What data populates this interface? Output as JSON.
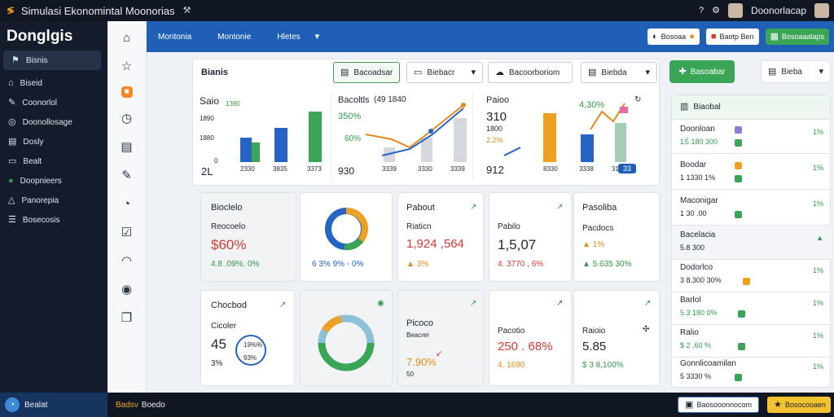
{
  "window": {
    "title": "Simulasi Ekonomintal Moonorias",
    "wrench_icon": "wrench-icon"
  },
  "header": {
    "user_name": "Doonorlacap"
  },
  "sidebar": {
    "brand": "Donglgis",
    "items": [
      {
        "label": "Bisnis",
        "icon": "flag-icon",
        "active": true
      },
      {
        "label": "Biseid",
        "icon": "home-icon"
      },
      {
        "label": "Coonorlol",
        "icon": "pen-icon"
      },
      {
        "label": "Doonollosage",
        "icon": "globe-icon"
      },
      {
        "label": "Dosly",
        "icon": "book-icon"
      },
      {
        "label": "Bealt",
        "icon": "file-icon"
      },
      {
        "label": "Doopnieers",
        "icon": "circle-icon"
      },
      {
        "label": "Panorepia",
        "icon": "triangle-icon"
      },
      {
        "label": "Bosecosis",
        "icon": "list-icon"
      }
    ],
    "footer_label": "Bealat"
  },
  "topnav": {
    "tabs": [
      "Montonia",
      "Montonie",
      "Hletes"
    ],
    "pill1": "Bosoaa",
    "pill2": "Baotp Ben",
    "pill3": "Bosoaaalaps"
  },
  "panel": {
    "title": "Bianis",
    "filter1": "Bacoadsar",
    "filter2": "Biebacr",
    "filter3": "Bacoorboriom",
    "filter4": "Biebda",
    "action_button": "Basoabar",
    "action_select": "Bieba"
  },
  "charts": [
    {
      "title": "Saio",
      "subtitle": "1390",
      "yticks": [
        "1890",
        "1880",
        "0"
      ],
      "foot": "2L",
      "xlabels": [
        "2330",
        "3835",
        "3373"
      ],
      "values": [
        30,
        36,
        70
      ],
      "colors": [
        "#2364c4",
        "#2364c4",
        "#3aa655"
      ]
    },
    {
      "title": "Bacoltls",
      "subtitle": "(49 1840",
      "big": "350%",
      "mid": "60%",
      "foot": "930",
      "xlabels": [
        "3339",
        "3330",
        "3339"
      ]
    },
    {
      "title": "Paioo",
      "big": "310",
      "sub1": "1800",
      "sub2": "2.2%",
      "foot": "912",
      "xlabels": [
        "8330",
        "3338",
        "3138"
      ],
      "pct": "4,30%",
      "badge": "33"
    }
  ],
  "tiles": [
    {
      "title": "Bioclelo",
      "label": "Reocoelo",
      "value": "$60%",
      "sub": "4.8 .09%.  0%"
    },
    {
      "value": "6 3%  9%  - 0%"
    },
    {
      "title": "Pabout",
      "label": "Riaticn",
      "value": "1,924 ,564",
      "sub": "  ▲ 3%"
    },
    {
      "title": "",
      "label": "Pabilo",
      "value": "1,5,07",
      "sub": "4. 3770 , 6%"
    },
    {
      "title": "Pasoliba",
      "label": "Pacdocs",
      "value": "  ▲ 1%",
      "sub": "▲ 5.635 30%"
    },
    {
      "title": "Chocbod",
      "label": "Cicoler",
      "value": "45",
      "sub": "3%",
      "ring1": "19%%",
      "ring2": "93%"
    },
    {
      "title": "Picoco",
      "label": "Beacrer",
      "value": "7.90%",
      "sub": "50 "
    },
    {
      "label": "Pacotio",
      "value": "250 . 68%",
      "sub": "4. 1690"
    },
    {
      "label": "Raioio",
      "value": "5.85",
      "sub": "$ 3 8,100%"
    }
  ],
  "right_panel": {
    "title": "Biaobal",
    "items": [
      {
        "name": "Doonloan",
        "value": "1Ś 180 300",
        "pct": "1%",
        "color": "#8a7fd4",
        "color2": "#3aa655"
      },
      {
        "name": "Boodar",
        "value": "1 1330  1%",
        "pct": "1%",
        "color": "#f0a020",
        "color2": "#3aa655"
      },
      {
        "name": "Maconigar",
        "value": "1 30 .00  ",
        "pct": "1%",
        "color": "#3aa655"
      },
      {
        "name": "Bacelacia",
        "value": "5.8 300 ",
        "pct": "▲"
      },
      {
        "name": "Dodorlco",
        "value": "3 8,300 30%",
        "pct": "1%",
        "color": "#f0a020"
      },
      {
        "name": "Barlol",
        "value": "5.3 180  0%",
        "pct": "1%",
        "color": "#3aa655"
      },
      {
        "name": "Ralio",
        "value": "$ 2 ,60  %",
        "pct": "1%",
        "color": "#3aa655"
      },
      {
        "name": "Gonnlicoamilan",
        "value": "5 3330 %",
        "pct": "1%",
        "color": "#3aa655"
      }
    ]
  },
  "footer": {
    "left": "Badsv",
    "left2": "Boedo",
    "btn1": "Baosooonnocom",
    "btn2": "Bosocooaen"
  }
}
